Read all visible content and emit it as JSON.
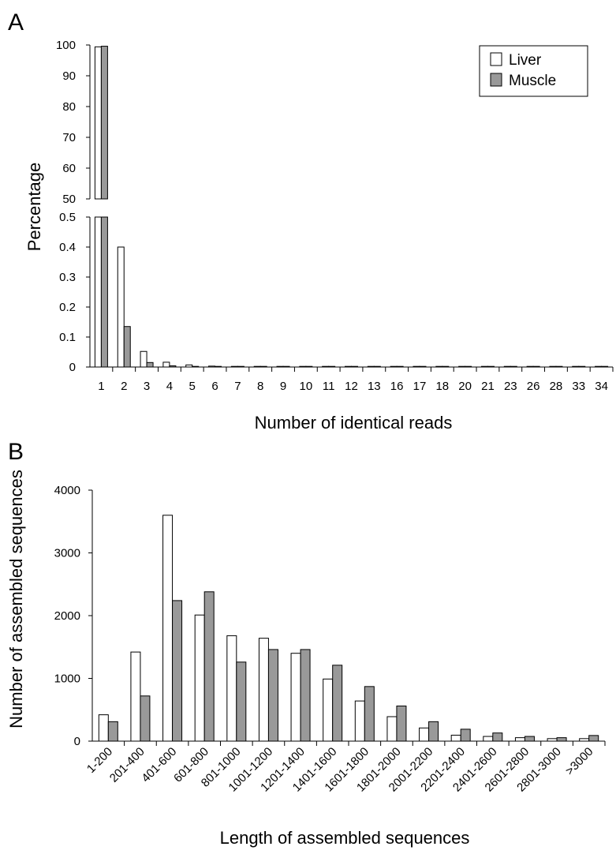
{
  "chart_data": [
    {
      "panel": "A",
      "type": "bar",
      "xlabel": "Number of identical reads",
      "ylabel": "Percentage",
      "axis_break": true,
      "upper_ylim": [
        50,
        100
      ],
      "upper_yticks": [
        "50",
        "60",
        "70",
        "80",
        "90",
        "100"
      ],
      "lower_ylim": [
        0,
        0.5
      ],
      "lower_yticks": [
        "0",
        "0.1",
        "0.2",
        "0.3",
        "0.4",
        "0.5"
      ],
      "categories": [
        "1",
        "2",
        "3",
        "4",
        "5",
        "6",
        "7",
        "8",
        "9",
        "10",
        "11",
        "12",
        "13",
        "16",
        "17",
        "18",
        "20",
        "21",
        "23",
        "26",
        "28",
        "33",
        "34"
      ],
      "series": [
        {
          "name": "Liver",
          "color": "#ffffff",
          "values": [
            99.4,
            0.4,
            0.052,
            0.016,
            0.007,
            0.003,
            0.002,
            0.002,
            0.002,
            0.001,
            0.001,
            0.001,
            0.001,
            0.001,
            0.001,
            0.001,
            0.001,
            0.001,
            0.001,
            0.001,
            0.001,
            0.001,
            0.001
          ]
        },
        {
          "name": "Muscle",
          "color": "#999999",
          "values": [
            99.6,
            0.135,
            0.015,
            0.004,
            0.002,
            0.002,
            0.001,
            0.001,
            0.001,
            0.001,
            0.001,
            0.001,
            0.001,
            0.001,
            0.001,
            0.001,
            0.001,
            0.001,
            0.001,
            0.001,
            0.001,
            0.001,
            0.001
          ]
        }
      ],
      "legend": "top-right",
      "grid": false
    },
    {
      "panel": "B",
      "type": "bar",
      "xlabel": "Length of assembled sequences",
      "ylabel": "Number of assembled sequences",
      "ylim": [
        0,
        4000
      ],
      "yticks": [
        "0",
        "1000",
        "2000",
        "3000",
        "4000"
      ],
      "categories": [
        "1-200",
        "201-400",
        "401-600",
        "601-800",
        "801-1000",
        "1001-1200",
        "1201-1400",
        "1401-1600",
        "1601-1800",
        "1801-2000",
        "2001-2200",
        "2201-2400",
        "2401-2600",
        "2601-2800",
        "2801-3000",
        ">3000"
      ],
      "series": [
        {
          "name": "Liver",
          "color": "#ffffff",
          "values": [
            420,
            1420,
            3600,
            2010,
            1680,
            1640,
            1400,
            990,
            640,
            390,
            210,
            95,
            75,
            55,
            40,
            40
          ]
        },
        {
          "name": "Muscle",
          "color": "#999999",
          "values": [
            310,
            720,
            2240,
            2380,
            1260,
            1460,
            1460,
            1210,
            870,
            560,
            310,
            190,
            130,
            75,
            55,
            90
          ]
        }
      ],
      "grid": false
    }
  ]
}
